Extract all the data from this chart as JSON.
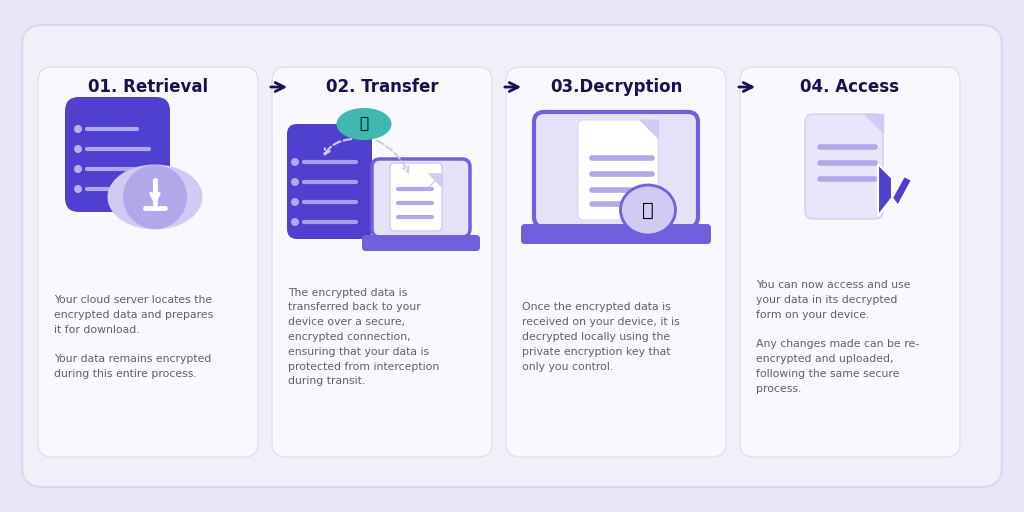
{
  "bg_color": "#e8e7f5",
  "outer_card_fc": "#f0f0f8",
  "outer_card_ec": "#d8d8ee",
  "inner_card_fc": "#f8f8fe",
  "inner_card_ec": "#dcdcf0",
  "title_color": "#1a1050",
  "body_color": "#606070",
  "arrow_color": "#1a1050",
  "purple_dark": "#5040d0",
  "purple_mid": "#7060e0",
  "purple_light": "#b0a8e8",
  "purple_pale": "#d0caf5",
  "purple_faint": "#e5e2f8",
  "teal": "#40b8b0",
  "white": "#ffffff",
  "step_numbers": [
    "01. Retrieval",
    "02. Transfer",
    "03.Decryption",
    "04. Access"
  ],
  "descriptions": [
    "Your cloud server locates the\nencrypted data and prepares\nit for download.\n\nYour data remains encrypted\nduring this entire process.",
    "The encrypted data is\ntransferred back to your\ndevice over a secure,\nencrypted connection,\nensuring that your data is\nprotected from interception\nduring transit.",
    "Once the encrypted data is\nreceived on your device, it is\ndecrypted locally using the\nprivate encryption key that\nonly you control.",
    "You can now access and use\nyour data in its decrypted\nform on your device.\n\nAny changes made can be re-\nencrypted and uploaded,\nfollowing the same secure\nprocess."
  ]
}
